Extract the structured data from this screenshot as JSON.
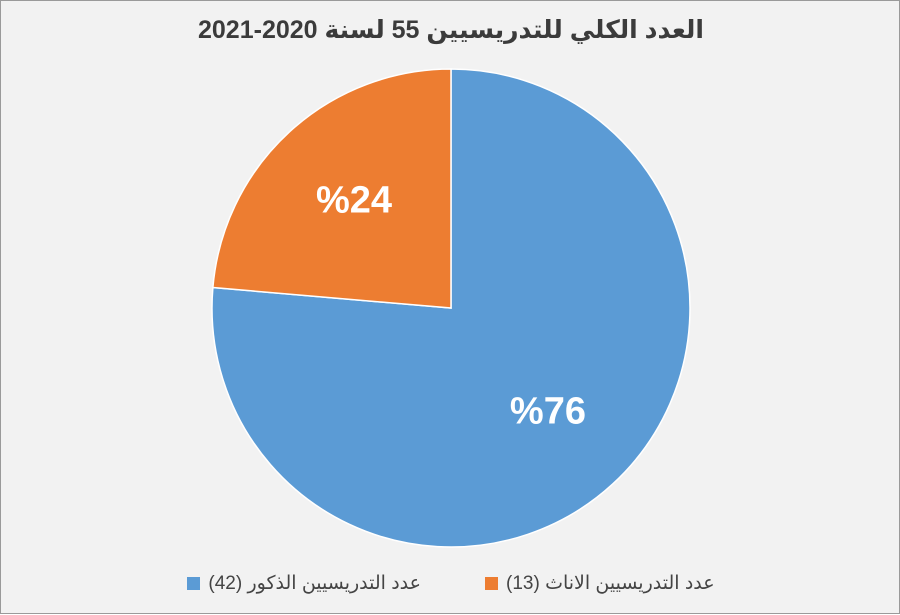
{
  "chart_data": {
    "type": "pie",
    "title": "العدد الكلي للتدريسيين 55 لسنة 2020-2021",
    "slices": [
      {
        "name": "عدد التدريسيين الذكور (42)",
        "value": 42,
        "percent_label": "%76",
        "color": "#5b9bd5"
      },
      {
        "name": "عدد التدريسيين الاناث (13)",
        "value": 13,
        "percent_label": "%24",
        "color": "#ed7d31"
      }
    ],
    "legend_position": "bottom"
  }
}
